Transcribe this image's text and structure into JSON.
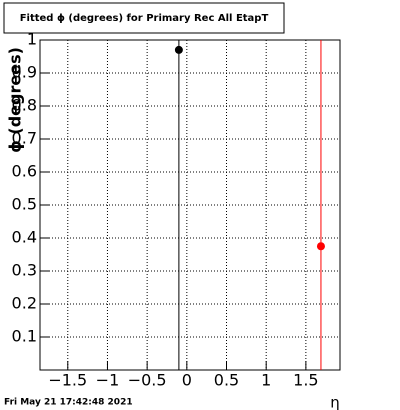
{
  "chart_data": {
    "type": "scatter",
    "title": "Fitted ϕ (degrees) for Primary Rec All EtapT",
    "x_label": "η",
    "y_label": "ϕ (degrees)",
    "footer": "Fri May 21 17:42:48 2021",
    "series": [
      {
        "color": "#000000",
        "x": [
          -0.1
        ],
        "values": [
          0.97
        ],
        "errors": [
          0.97
        ]
      },
      {
        "color": "#ff0000",
        "x": [
          1.69
        ],
        "values": [
          0.375
        ],
        "errors": [
          0.7
        ]
      }
    ],
    "xlim": [
      -1.85,
      1.93
    ],
    "ylim": [
      0,
      1
    ],
    "xticks": [
      {
        "value": -1.5,
        "label": "−1.5"
      },
      {
        "value": -1,
        "label": "−1"
      },
      {
        "value": -0.5,
        "label": "−0.5"
      },
      0,
      0.5,
      1,
      1.5
    ],
    "yticks": [
      0.1,
      0.2,
      0.3,
      0.4,
      0.5,
      0.6,
      0.7,
      0.8,
      0.9,
      1
    ],
    "grid": true
  }
}
